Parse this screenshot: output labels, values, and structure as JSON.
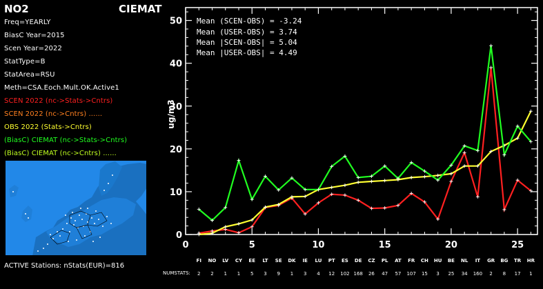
{
  "panel": {
    "species": "NO2",
    "model": "CIEMAT",
    "freq": "Freq=YEARLY",
    "biasc_year": "BiasC Year=2015",
    "scen_year": "Scen Year=2022",
    "stat_type": "StatType=B",
    "stat_area": "StatArea=RSU",
    "meth": "Meth=CSA.Eoch.Mult.OK.Active1",
    "legend": [
      {
        "text": "SCEN 2022 (nc->Stats->Cntrs)",
        "color": "#ff2020"
      },
      {
        "text": "SCEN 2022 (nc->Cntrs) ......",
        "color": "#ff8020"
      },
      {
        "text": "OBS  2022 (Stats->Cntrs)",
        "color": "#ffff30"
      },
      {
        "text": "(BiasC) CIEMAT (nc->Stats->Cntrs)",
        "color": "#20ff20"
      },
      {
        "text": "(BiasC) CIEMAT (nc->Cntrs) ......",
        "color": "#c0ff20"
      }
    ],
    "active": "ACTIVE Stations: nStats(EUR)=816"
  },
  "stats": {
    "l1": "Mean (SCEN-OBS) = -3.24",
    "l2": "Mean (USER-OBS) = 3.74",
    "l3": "Mean |SCEN-OBS| = 5.04",
    "l4": "Mean |USER-OBS| = 4.49"
  },
  "numstats_label": "NUMSTATS:",
  "chart_data": {
    "type": "line",
    "ylabel": "ug/m3",
    "xlim": [
      0,
      26.5
    ],
    "ylim": [
      0,
      53
    ],
    "xticks": [
      0,
      5,
      10,
      15,
      20,
      25
    ],
    "yticks": [
      0,
      10,
      20,
      30,
      40,
      50
    ],
    "categories": [
      "FI",
      "NO",
      "LV",
      "CY",
      "EE",
      "LT",
      "SE",
      "DK",
      "IE",
      "LU",
      "PT",
      "ES",
      "DE",
      "CZ",
      "PL",
      "AT",
      "FR",
      "CH",
      "HU",
      "BE",
      "NL",
      "IT",
      "GR",
      "BG",
      "TR",
      "HR"
    ],
    "numstats": [
      "2",
      "2",
      "1",
      "1",
      "5",
      "3",
      "9",
      "1",
      "3",
      "4",
      "12",
      "102",
      "168",
      "26",
      "47",
      "57",
      "107",
      "15",
      "3",
      "25",
      "34",
      "160",
      "2",
      "8",
      "17",
      "1"
    ],
    "series": [
      {
        "color": "#ff2020",
        "values": [
          0.3,
          0.8,
          1.2,
          0.4,
          1.8,
          6.3,
          6.8,
          8.5,
          4.8,
          7.4,
          9.4,
          9.2,
          8.0,
          6.1,
          6.2,
          6.8,
          9.6,
          7.6,
          3.6,
          12.4,
          19.1,
          8.8,
          39.0,
          5.8,
          12.7,
          10.2
        ]
      },
      {
        "color": "#ffff30",
        "values": [
          0.0,
          0.3,
          1.8,
          2.5,
          3.4,
          6.4,
          7.0,
          8.8,
          8.9,
          10.5,
          11.0,
          11.5,
          12.2,
          12.4,
          12.6,
          12.8,
          13.3,
          13.5,
          13.8,
          14.2,
          16.0,
          16.0,
          19.4,
          20.8,
          22.5,
          28.8
        ]
      },
      {
        "color": "#20ff20",
        "values": [
          5.9,
          3.3,
          6.3,
          17.3,
          8.2,
          13.6,
          10.4,
          13.2,
          10.5,
          10.5,
          15.9,
          18.3,
          13.3,
          13.6,
          16.0,
          13.1,
          16.8,
          14.8,
          12.7,
          16.2,
          20.7,
          19.6,
          44.1,
          18.6,
          25.3,
          21.7
        ]
      }
    ]
  }
}
